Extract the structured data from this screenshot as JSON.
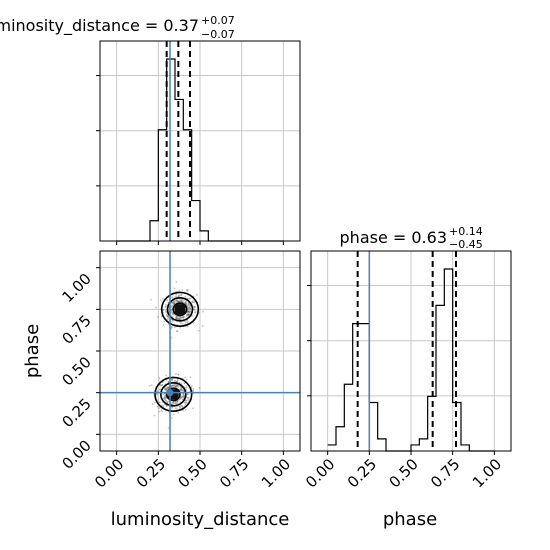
{
  "chart_data": {
    "type": "corner",
    "parameters": [
      "luminosity_distance",
      "phase"
    ],
    "truth": {
      "luminosity_distance": 0.32,
      "phase": 0.25
    },
    "titles": [
      {
        "param": "luminosity_distance",
        "prefix": "luminosity_distance = 0.37",
        "plus": "+0.07",
        "minus": "−0.07"
      },
      {
        "param": "phase",
        "prefix": "phase = 0.63",
        "plus": "+0.14",
        "minus": "−0.45"
      }
    ],
    "axis_ticks": [
      "0.00",
      "0.25",
      "0.50",
      "0.75",
      "1.00"
    ],
    "xlim": [
      -0.1,
      1.1
    ],
    "ylim": [
      -0.1,
      1.1
    ],
    "grid": true,
    "histograms": [
      {
        "param": "luminosity_distance",
        "bin_edges": [
          0.0,
          0.05,
          0.1,
          0.15,
          0.2,
          0.25,
          0.3,
          0.35,
          0.4,
          0.45,
          0.5,
          0.55,
          0.6,
          0.65,
          0.7,
          0.75,
          0.8,
          0.85,
          0.9,
          0.95,
          1.0
        ],
        "counts": [
          0,
          0,
          0,
          0,
          2,
          11,
          18,
          14,
          11,
          4,
          1,
          0,
          0,
          0,
          0,
          0,
          0,
          0,
          0,
          0
        ],
        "quantiles": [
          0.3,
          0.37,
          0.44
        ]
      },
      {
        "param": "phase",
        "bin_edges": [
          0.0,
          0.05,
          0.1,
          0.15,
          0.2,
          0.25,
          0.3,
          0.35,
          0.4,
          0.45,
          0.5,
          0.55,
          0.6,
          0.65,
          0.7,
          0.75,
          0.8,
          0.85,
          0.9,
          0.95,
          1.0
        ],
        "counts": [
          1,
          4,
          11,
          21,
          21,
          8,
          2,
          0,
          0,
          0,
          1,
          2,
          9,
          24,
          30,
          8,
          1,
          0,
          0,
          0
        ],
        "quantiles": [
          0.18,
          0.63,
          0.77
        ]
      }
    ],
    "density_2d": {
      "x": "luminosity_distance",
      "y": "phase",
      "clusters": [
        {
          "center": [
            0.38,
            0.75
          ],
          "spread": [
            0.05,
            0.05
          ]
        },
        {
          "center": [
            0.34,
            0.24
          ],
          "spread": [
            0.05,
            0.05
          ]
        }
      ]
    }
  },
  "labels": {
    "x_bottom_left": "luminosity_distance",
    "x_bottom_right": "phase",
    "y_left": "phase"
  },
  "colors": {
    "truth_line": "#4682b4",
    "hist_line": "#000000",
    "grid": "#c8c8c8",
    "scatter": "#555555"
  }
}
